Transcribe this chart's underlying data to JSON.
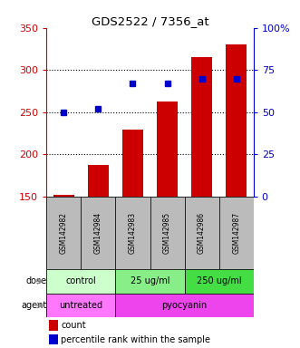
{
  "title": "GDS2522 / 7356_at",
  "samples": [
    "GSM142982",
    "GSM142984",
    "GSM142983",
    "GSM142985",
    "GSM142986",
    "GSM142987"
  ],
  "counts": [
    152,
    188,
    229,
    263,
    315,
    330
  ],
  "percentiles": [
    50,
    52,
    67,
    67,
    70,
    70
  ],
  "left_ylim": [
    150,
    350
  ],
  "left_yticks": [
    150,
    200,
    250,
    300,
    350
  ],
  "right_ylim": [
    0,
    100
  ],
  "right_yticks": [
    0,
    25,
    50,
    75,
    100
  ],
  "right_yticklabels": [
    "0",
    "25",
    "50",
    "75",
    "100%"
  ],
  "bar_color": "#CC0000",
  "dot_color": "#0000CC",
  "dose_groups": [
    {
      "label": "control",
      "cols": [
        0,
        1
      ],
      "color": "#CCFFCC"
    },
    {
      "label": "25 ug/ml",
      "cols": [
        2,
        3
      ],
      "color": "#88EE88"
    },
    {
      "label": "250 ug/ml",
      "cols": [
        4,
        5
      ],
      "color": "#44DD44"
    }
  ],
  "agent_groups": [
    {
      "label": "untreated",
      "cols": [
        0,
        1
      ],
      "color": "#FF77FF"
    },
    {
      "label": "pyocyanin",
      "cols": [
        2,
        5
      ],
      "color": "#EE44EE"
    }
  ],
  "dose_label": "dose",
  "agent_label": "agent",
  "legend_count_label": "count",
  "legend_percentile_label": "percentile rank within the sample",
  "tick_color_left": "#CC0000",
  "tick_color_right": "#0000CC",
  "sample_box_color": "#BBBBBB",
  "grid_yticks": [
    200,
    250,
    300
  ]
}
